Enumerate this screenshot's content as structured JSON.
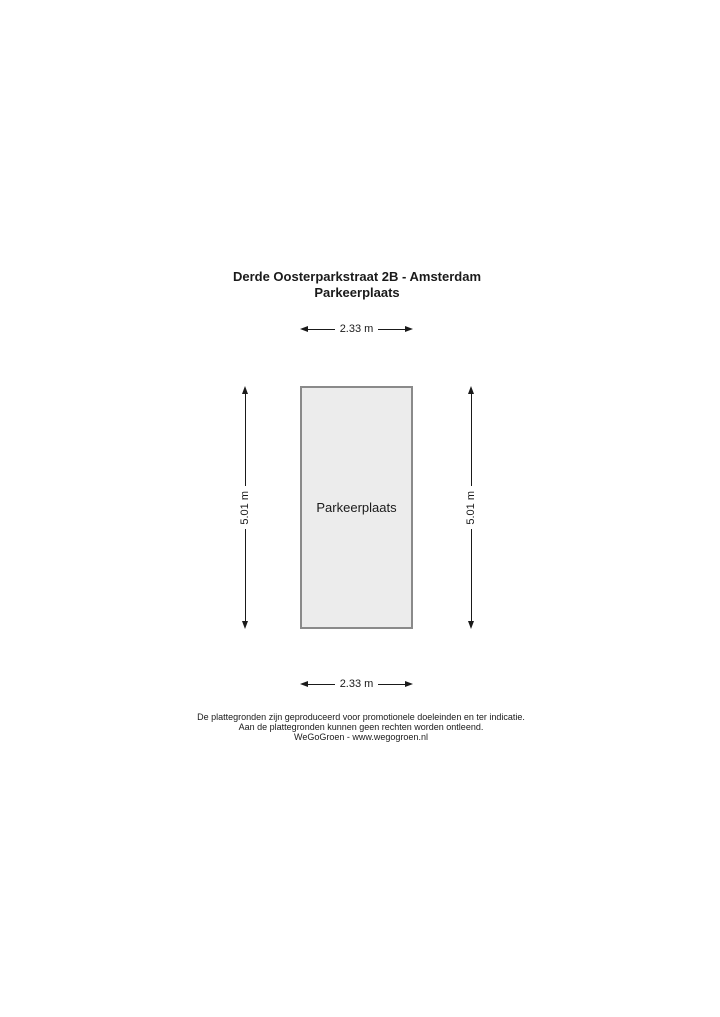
{
  "title": {
    "line1": "Derde Oosterparkstraat 2B - Amsterdam",
    "line2": "Parkeerplaats"
  },
  "room": {
    "label": "Parkeerplaats"
  },
  "dimensions": {
    "top": "2.33 m",
    "bottom": "2.33 m",
    "left": "5.01 m",
    "right": "5.01 m"
  },
  "footer": {
    "line1": "De plattegronden zijn geproduceerd voor promotionele doeleinden en ter indicatie.",
    "line2": "Aan de plattegronden kunnen geen rechten worden ontleend.",
    "line3": "WeGoGroen -  www.wegogroen.nl"
  },
  "colors": {
    "room_fill": "#ececec",
    "room_border": "#8a8a8a",
    "dimension_line": "#1a1a1a",
    "text": "#1a1a1a",
    "background": "#ffffff"
  }
}
